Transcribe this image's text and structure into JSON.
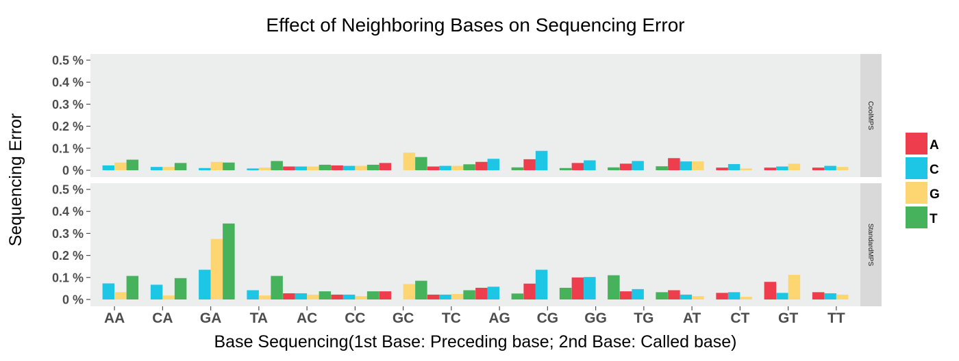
{
  "chart_data": {
    "type": "bar",
    "title": "Effect of Neighboring Bases on Sequencing Error",
    "xlabel": "Base Sequencing(1st Base: Preceding base; 2nd Base: Called base)",
    "ylabel": "Sequencing Error",
    "ylim": [
      0,
      0.5
    ],
    "y_ticks": [
      "0 %",
      "0.1 %",
      "0.2 %",
      "0.3 %",
      "0.4 %",
      "0.5 %"
    ],
    "categories": [
      "AA",
      "CA",
      "GA",
      "TA",
      "AC",
      "CC",
      "GC",
      "TC",
      "AG",
      "CG",
      "GG",
      "TG",
      "AT",
      "CT",
      "GT",
      "TT"
    ],
    "legend": {
      "position": "right",
      "entries": [
        {
          "name": "A",
          "color": "#ee3e4d"
        },
        {
          "name": "C",
          "color": "#1ec6e6"
        },
        {
          "name": "G",
          "color": "#fdd672"
        },
        {
          "name": "T",
          "color": "#46b35c"
        }
      ]
    },
    "panels": [
      {
        "strip": "CoolMPS",
        "series": [
          {
            "name": "A",
            "values": [
              null,
              null,
              null,
              null,
              0.017,
              0.022,
              0.033,
              0.017,
              0.038,
              0.05,
              0.033,
              0.03,
              0.055,
              0.012,
              0.012,
              0.012
            ]
          },
          {
            "name": "C",
            "values": [
              0.022,
              0.015,
              0.01,
              0.008,
              0.017,
              0.02,
              null,
              0.02,
              0.052,
              0.088,
              0.045,
              0.042,
              0.04,
              0.028,
              0.017,
              0.02
            ]
          },
          {
            "name": "G",
            "values": [
              0.035,
              0.015,
              0.038,
              0.012,
              0.017,
              0.02,
              0.08,
              0.02,
              null,
              null,
              null,
              null,
              0.04,
              0.008,
              0.03,
              0.015
            ]
          },
          {
            "name": "T",
            "values": [
              0.048,
              0.033,
              0.035,
              0.042,
              0.025,
              0.025,
              0.06,
              0.027,
              0.013,
              0.01,
              0.013,
              0.018,
              null,
              null,
              null,
              null
            ]
          }
        ]
      },
      {
        "strip": "StandardMPS",
        "series": [
          {
            "name": "A",
            "values": [
              null,
              null,
              null,
              null,
              0.028,
              0.022,
              0.037,
              0.022,
              0.053,
              0.072,
              0.1,
              0.037,
              0.042,
              0.03,
              0.08,
              0.033
            ]
          },
          {
            "name": "C",
            "values": [
              0.073,
              0.067,
              0.135,
              0.042,
              0.028,
              0.022,
              null,
              0.022,
              0.058,
              0.135,
              0.102,
              0.047,
              0.022,
              0.033,
              0.03,
              0.028
            ]
          },
          {
            "name": "G",
            "values": [
              0.033,
              0.018,
              0.275,
              0.018,
              0.022,
              0.015,
              0.07,
              0.025,
              null,
              null,
              null,
              null,
              0.015,
              0.012,
              0.112,
              0.022
            ]
          },
          {
            "name": "T",
            "values": [
              0.107,
              0.097,
              0.345,
              0.107,
              0.037,
              0.037,
              0.085,
              0.042,
              0.027,
              0.053,
              0.11,
              0.033,
              null,
              null,
              null,
              null
            ]
          }
        ]
      }
    ]
  }
}
